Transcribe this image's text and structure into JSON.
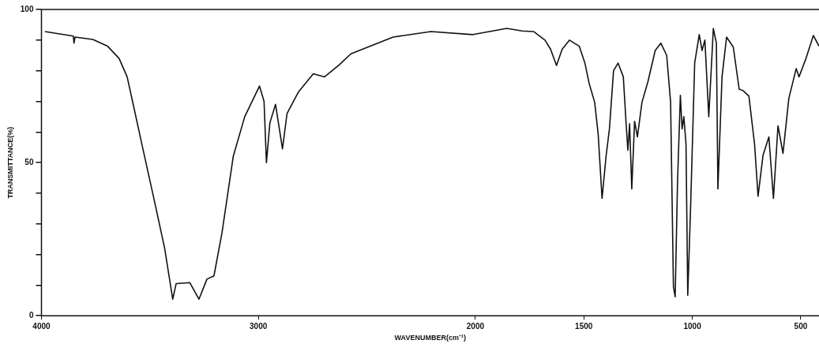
{
  "chart_data": {
    "type": "line",
    "xlabel": "WAVENUMBER(cm⁻¹)",
    "ylabel": "TRANSMITTANCE(%)",
    "xlim": [
      4000,
      416
    ],
    "xticks": [
      4000,
      3000,
      2000,
      1500,
      1000,
      500
    ],
    "ylim": [
      0,
      100
    ],
    "yticks": [
      0,
      {
        "value": 10,
        "label": null
      },
      {
        "value": 20,
        "label": null
      },
      {
        "value": 30,
        "label": null
      },
      {
        "value": 40,
        "label": null
      },
      50,
      {
        "value": 60,
        "label": null
      },
      {
        "value": 70,
        "label": null
      },
      {
        "value": 80,
        "label": null
      },
      {
        "value": 90,
        "label": null
      },
      100
    ],
    "grid": false,
    "legend": false,
    "marker": "none",
    "line_style": "solid",
    "series": [
      {
        "color": "#111111",
        "x": [
          3984,
          3853,
          3850,
          3845,
          3763,
          3695,
          3642,
          3605,
          3574,
          3537,
          3484,
          3432,
          3395,
          3379,
          3316,
          3274,
          3237,
          3205,
          3168,
          3116,
          3063,
          2995,
          2974,
          2963,
          2947,
          2921,
          2889,
          2868,
          2816,
          2747,
          2695,
          2626,
          2574,
          2379,
          2205,
          2011,
          1855,
          1784,
          1732,
          1679,
          1653,
          1626,
          1600,
          1566,
          1521,
          1495,
          1476,
          1450,
          1434,
          1416,
          1397,
          1382,
          1363,
          1342,
          1318,
          1305,
          1297,
          1289,
          1279,
          1266,
          1253,
          1232,
          1205,
          1171,
          1145,
          1118,
          1100,
          1087,
          1079,
          1068,
          1055,
          1047,
          1039,
          1029,
          1021,
          1008,
          989,
          968,
          955,
          942,
          924,
          903,
          889,
          882,
          863,
          842,
          811,
          784,
          766,
          739,
          713,
          697,
          674,
          647,
          626,
          605,
          582,
          555,
          521,
          508,
          476,
          442,
          416
        ],
        "values": [
          92.8,
          91.3,
          89,
          91,
          90.2,
          88,
          84,
          78,
          68,
          56,
          39,
          22,
          5.4,
          10.5,
          10.8,
          5.4,
          12,
          13,
          27,
          52,
          65,
          75,
          70,
          50,
          63,
          69,
          54.5,
          66,
          73,
          79,
          78,
          82,
          85.5,
          91,
          92.8,
          91.8,
          93.8,
          93,
          92.8,
          90,
          87,
          81.7,
          87,
          90,
          88,
          82.5,
          76,
          69.7,
          59.4,
          38.3,
          52.4,
          61,
          80,
          82.5,
          78,
          62.7,
          54,
          62.7,
          41.4,
          63.5,
          58.4,
          69.7,
          76.3,
          86.6,
          89,
          85,
          69.7,
          9.5,
          6.2,
          44,
          72,
          61,
          65,
          56,
          6.7,
          35,
          82.5,
          91.8,
          86.6,
          90,
          65,
          93.8,
          89,
          41.4,
          78,
          91,
          87.7,
          74,
          73.5,
          71.7,
          56,
          39,
          52.4,
          58.4,
          38.3,
          62,
          53,
          71,
          80.7,
          78,
          84,
          91.5,
          88
        ]
      }
    ]
  }
}
